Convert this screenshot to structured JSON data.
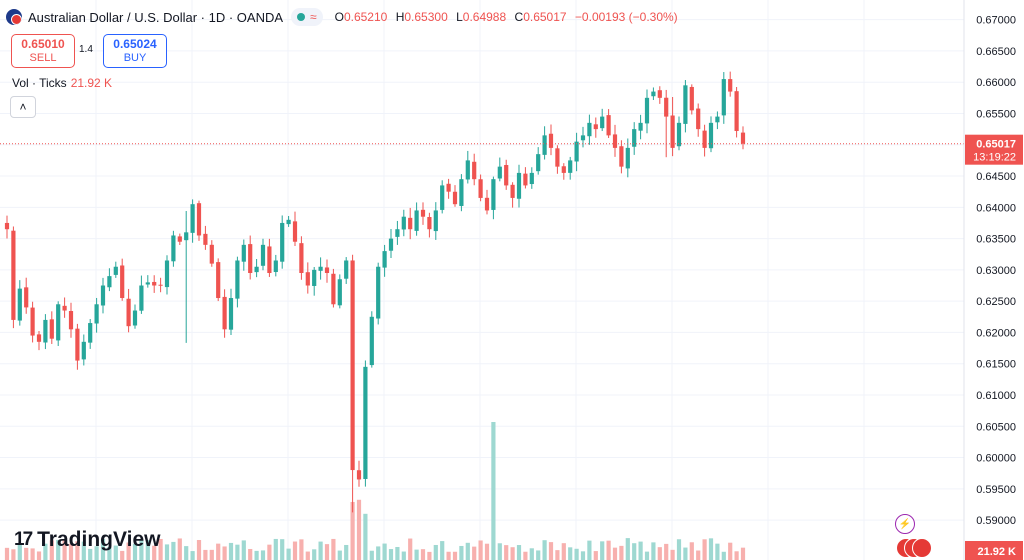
{
  "header": {
    "symbol_title": "Australian Dollar / U.S. Dollar · 1D · OANDA",
    "wave_glyph": "≈",
    "ohlc": [
      {
        "key": "O",
        "value": "0.65210"
      },
      {
        "key": "H",
        "value": "0.65300"
      },
      {
        "key": "L",
        "value": "0.64988"
      },
      {
        "key": "C",
        "value": "0.65017"
      }
    ],
    "change": "−0.00193 (−0.30%)"
  },
  "trade": {
    "sell_price": "0.65010",
    "sell_label": "SELL",
    "spread": "1.4",
    "buy_price": "0.65024",
    "buy_label": "BUY"
  },
  "volume_legend": {
    "label": "Vol · Ticks",
    "value": "21.92 K"
  },
  "collapse_glyph": "˄",
  "logo": {
    "mark": "17",
    "text": "TradingView"
  },
  "icons": [
    "flag-au-us-icon",
    "collapse-chevron-icon",
    "lightning-icon",
    "us-flag-icon"
  ],
  "colors": {
    "up": "#26a69a",
    "down": "#ef5350",
    "volume_up": "#9ed8d1",
    "volume_down": "#f7b0ae",
    "accent": "#2962ff"
  },
  "chart_data": {
    "type": "candlestick",
    "title": "Australian Dollar / U.S. Dollar · 1D · OANDA",
    "y_axis_ticks": [
      "0.67000",
      "0.66500",
      "0.66000",
      "0.65500",
      "0.65000",
      "0.64500",
      "0.64000",
      "0.63500",
      "0.63000",
      "0.62500",
      "0.62000",
      "0.61500",
      "0.61000",
      "0.60500",
      "0.60000",
      "0.59500",
      "0.59000"
    ],
    "y_range": [
      0.5865,
      0.6725
    ],
    "last_price": "0.65017",
    "countdown": "13:19:22",
    "volume_last": "21.92 K",
    "grid": true,
    "series": [
      {
        "name": "AUD/USD",
        "closes": [
          0.6365,
          0.622,
          0.627,
          0.624,
          0.6195,
          0.6185,
          0.622,
          0.619,
          0.6245,
          0.6235,
          0.6205,
          0.6155,
          0.6185,
          0.6215,
          0.6245,
          0.6275,
          0.629,
          0.6305,
          0.6255,
          0.621,
          0.6235,
          0.6275,
          0.628,
          0.6275,
          0.6275,
          0.6315,
          0.6355,
          0.6345,
          0.636,
          0.6405,
          0.6355,
          0.634,
          0.631,
          0.6255,
          0.6205,
          0.6255,
          0.6315,
          0.634,
          0.6295,
          0.6305,
          0.634,
          0.6295,
          0.6315,
          0.6375,
          0.638,
          0.6345,
          0.6295,
          0.6275,
          0.63,
          0.6305,
          0.6295,
          0.6245,
          0.6285,
          0.6315,
          0.598,
          0.5965,
          0.6145,
          0.6225,
          0.6305,
          0.633,
          0.635,
          0.6365,
          0.6385,
          0.6365,
          0.6395,
          0.6385,
          0.6365,
          0.6395,
          0.6435,
          0.6425,
          0.6405,
          0.6445,
          0.6475,
          0.6445,
          0.6415,
          0.6395,
          0.6445,
          0.6465,
          0.6435,
          0.6415,
          0.6455,
          0.6435,
          0.6455,
          0.6485,
          0.6515,
          0.6495,
          0.6465,
          0.6455,
          0.6475,
          0.6505,
          0.6515,
          0.6535,
          0.6525,
          0.6545,
          0.6515,
          0.6495,
          0.6465,
          0.6495,
          0.6525,
          0.6535,
          0.6575,
          0.6585,
          0.6575,
          0.6545,
          0.6495,
          0.6535,
          0.6595,
          0.6555,
          0.6525,
          0.6495,
          0.6535,
          0.6545,
          0.6605,
          0.6585,
          0.6522,
          0.65017
        ]
      }
    ]
  }
}
